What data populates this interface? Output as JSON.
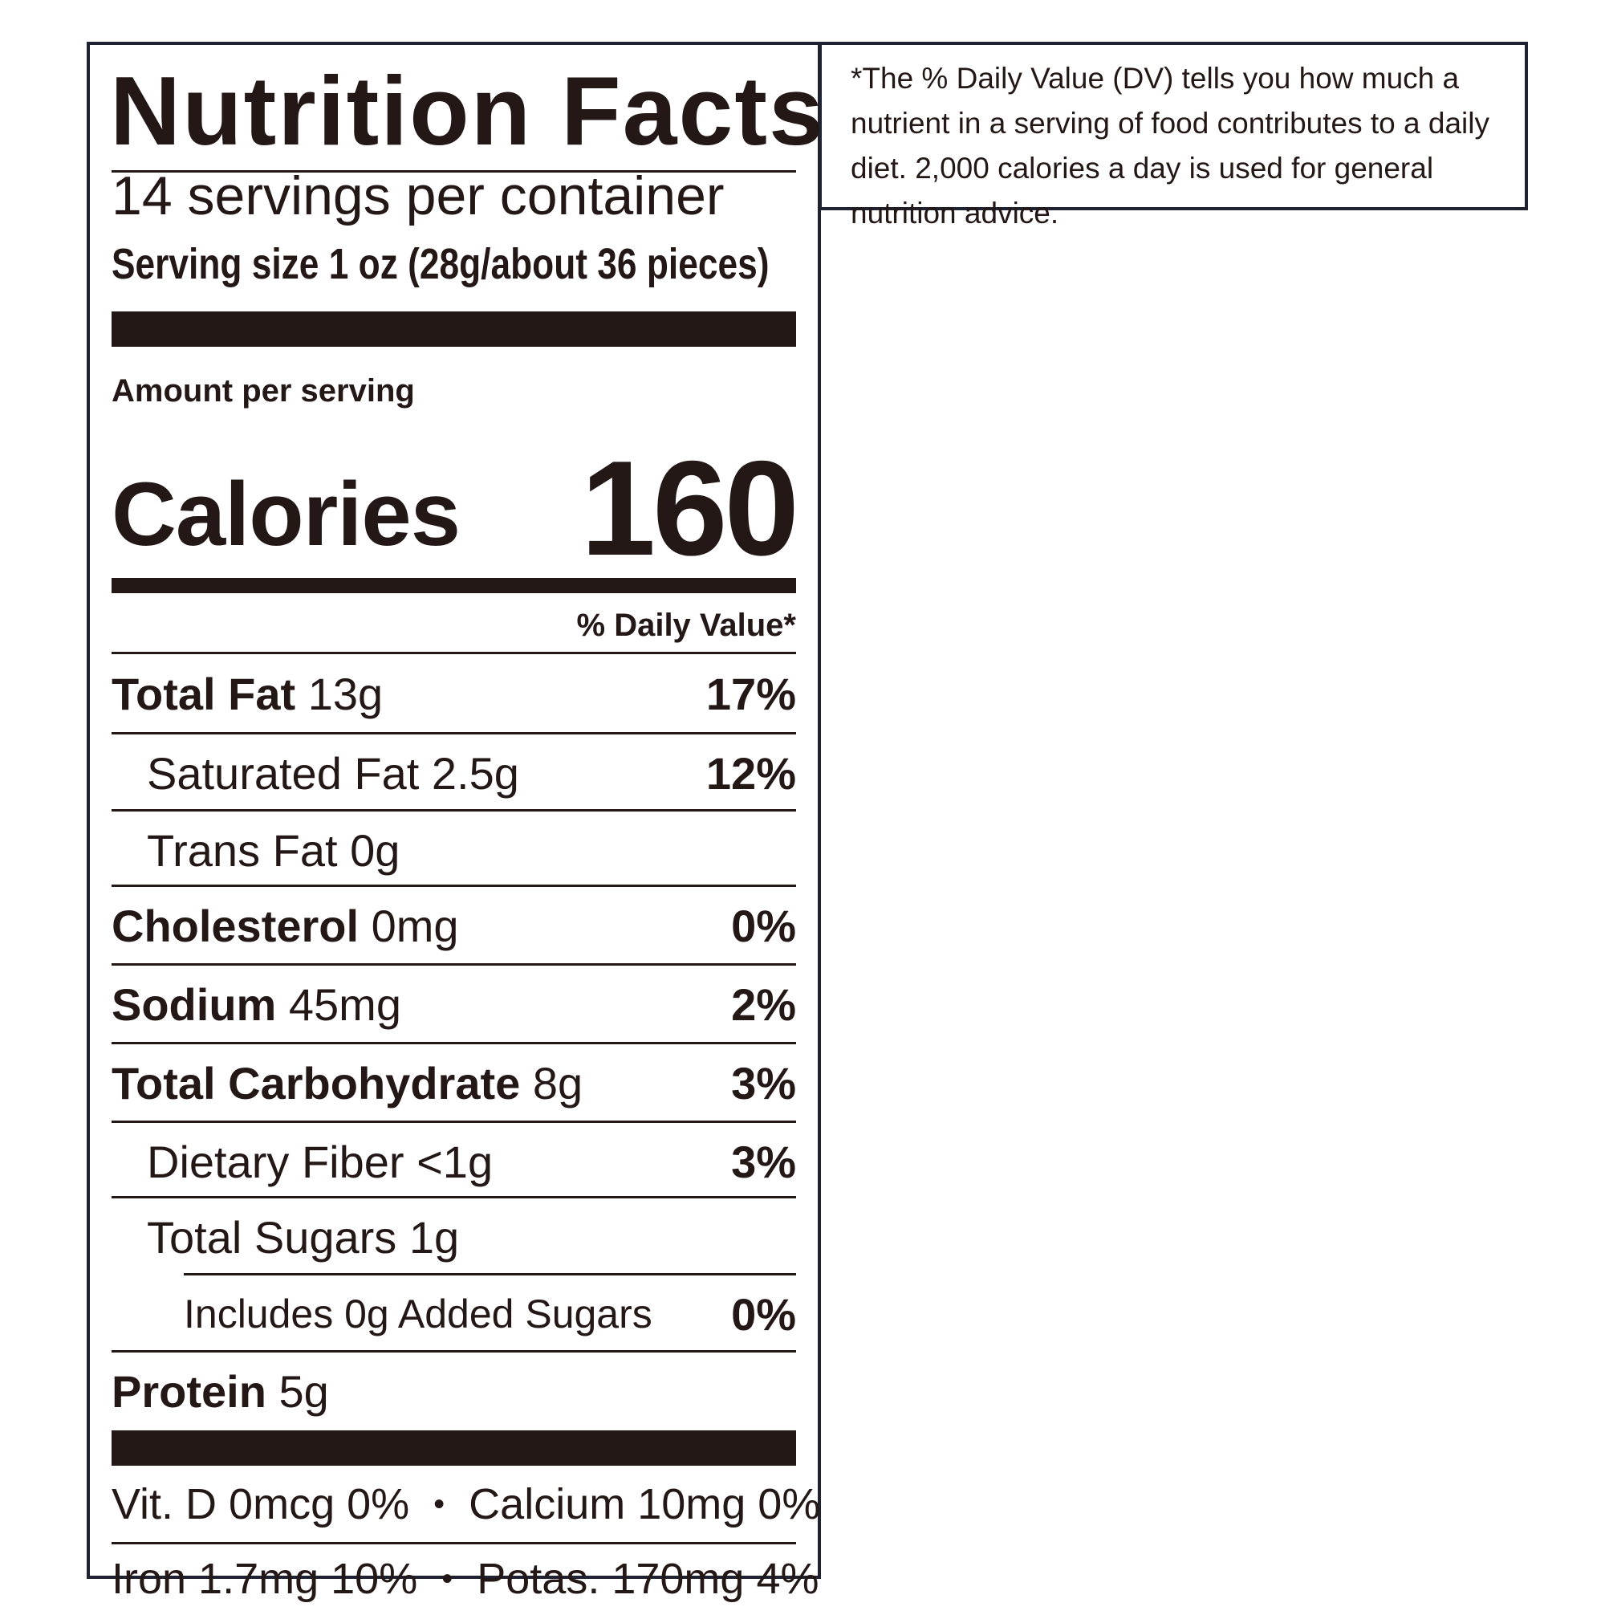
{
  "label": {
    "title": "Nutrition Facts",
    "servings": "14 servings per container",
    "serving_size": "Serving size 1 oz (28g/about 36 pieces)",
    "amount_per_serving": "Amount per serving",
    "calories_label": "Calories",
    "calories_value": "160",
    "daily_value_header": "% Daily Value*",
    "nutrients": [
      {
        "name": "Total Fat",
        "amount": "13g",
        "dv": "17%"
      },
      {
        "name": "Saturated Fat",
        "amount": "2.5g",
        "dv": "12%"
      },
      {
        "name": "Trans Fat",
        "amount": "0g",
        "dv": ""
      },
      {
        "name": "Cholesterol",
        "amount": "0mg",
        "dv": "0%"
      },
      {
        "name": "Sodium",
        "amount": "45mg",
        "dv": "2%"
      },
      {
        "name": "Total Carbohydrate",
        "amount": "8g",
        "dv": "3%"
      },
      {
        "name": "Dietary Fiber",
        "amount": "<1g",
        "dv": "3%"
      },
      {
        "name": "Total Sugars",
        "amount": "1g",
        "dv": ""
      },
      {
        "name": "Includes 0g Added Sugars",
        "amount": "",
        "dv": "0%"
      },
      {
        "name": "Protein",
        "amount": "5g",
        "dv": ""
      }
    ],
    "vitamins": [
      {
        "left": "Vit. D 0mcg 0%",
        "right": "Calcium 10mg 0%"
      },
      {
        "left": "Iron 1.7mg 10%",
        "right": "Potas. 170mg 4%"
      }
    ],
    "bullet": "•"
  },
  "footnote": {
    "text": "*The % Daily Value (DV) tells you how much a nutrient in a serving of food contributes to a daily diet. 2,000 calories a day is used for general nutrition advice."
  }
}
